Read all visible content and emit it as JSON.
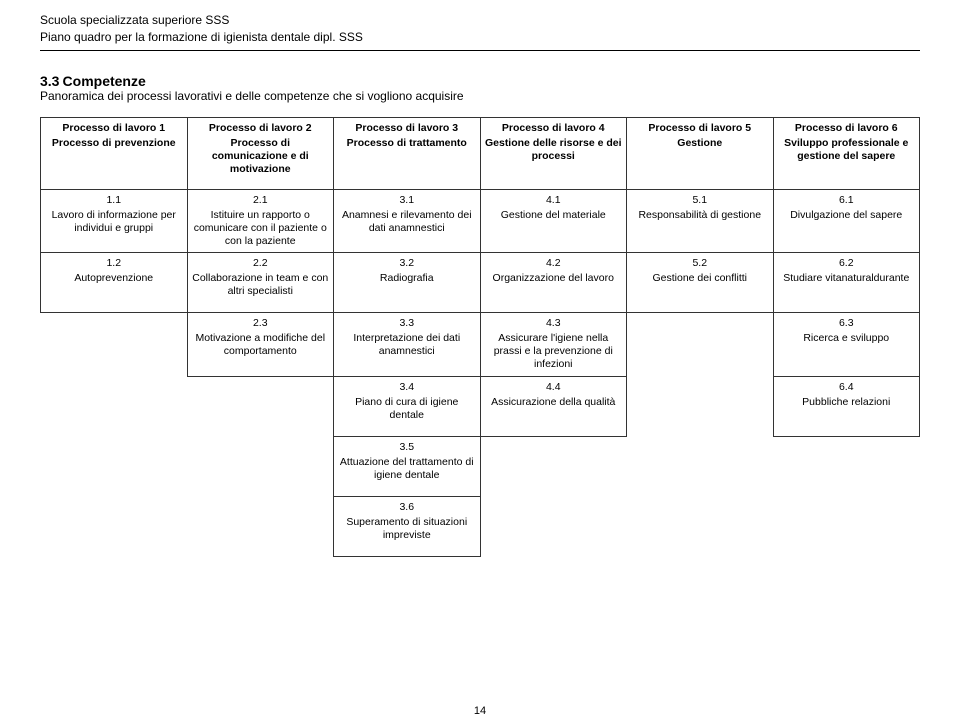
{
  "header": {
    "line1": "Scuola specializzata superiore SSS",
    "line2": "Piano quadro per la formazione di igienista dentale dipl. SSS"
  },
  "section": {
    "number": "3.3",
    "title": "Competenze",
    "subtitle": "Panoramica dei processi lavorativi e delle competenze che si vogliono acquisire"
  },
  "columns": [
    {
      "num": "Processo di lavoro 1",
      "txt": "Processo di prevenzione"
    },
    {
      "num": "Processo di lavoro 2",
      "txt": "Processo di comunicazione e di motivazione"
    },
    {
      "num": "Processo di lavoro 3",
      "txt": "Processo di trattamento"
    },
    {
      "num": "Processo di lavoro 4",
      "txt": "Gestione delle risorse e dei processi"
    },
    {
      "num": "Processo di lavoro 5",
      "txt": "Gestione"
    },
    {
      "num": "Processo di lavoro 6",
      "txt": "Sviluppo professionale e gestione del sapere"
    }
  ],
  "rows": [
    [
      {
        "num": "1.1",
        "txt": "Lavoro di informazione per individui e gruppi"
      },
      {
        "num": "2.1",
        "txt": "Istituire un rapporto o comunicare con il paziente o con la paziente"
      },
      {
        "num": "3.1",
        "txt": "Anamnesi e rilevamento dei dati anamnestici"
      },
      {
        "num": "4.1",
        "txt": "Gestione del materiale"
      },
      {
        "num": "5.1",
        "txt": "Responsabilità di gestione"
      },
      {
        "num": "6.1",
        "txt": "Divulgazione del sapere"
      }
    ],
    [
      {
        "num": "1.2",
        "txt": "Autoprevenzione"
      },
      {
        "num": "2.2",
        "txt": "Collaborazione in team e con altri specialisti"
      },
      {
        "num": "3.2",
        "txt": "Radiografia"
      },
      {
        "num": "4.2",
        "txt": "Organizzazione del lavoro"
      },
      {
        "num": "5.2",
        "txt": "Gestione dei conflitti"
      },
      {
        "num": "6.2",
        "txt": "Studiare vitanaturaldurante"
      }
    ],
    [
      null,
      {
        "num": "2.3",
        "txt": "Motivazione a modifiche del comportamento"
      },
      {
        "num": "3.3",
        "txt": "Interpretazione dei dati anamnestici"
      },
      {
        "num": "4.3",
        "txt": "Assicurare l'igiene nella prassi e la prevenzione di infezioni"
      },
      null,
      {
        "num": "6.3",
        "txt": "Ricerca e sviluppo"
      }
    ],
    [
      null,
      null,
      {
        "num": "3.4",
        "txt": "Piano di cura di igiene dentale"
      },
      {
        "num": "4.4",
        "txt": "Assicurazione della qualità"
      },
      null,
      {
        "num": "6.4",
        "txt": "Pubbliche relazioni"
      }
    ],
    [
      null,
      null,
      {
        "num": "3.5",
        "txt": "Attuazione del trattamento di igiene dentale"
      },
      null,
      null,
      null
    ],
    [
      null,
      null,
      {
        "num": "3.6",
        "txt": "Superamento di situazioni impreviste"
      },
      null,
      null,
      null
    ]
  ],
  "page_number": "14"
}
